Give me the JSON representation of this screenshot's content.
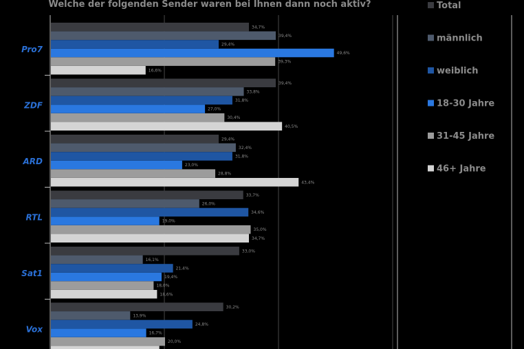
{
  "chart_data": {
    "type": "bar",
    "orientation": "horizontal",
    "title": "Welche der folgenden Sender waren bei Ihnen dann noch aktiv?",
    "categories": [
      "Pro7",
      "ZDF",
      "ARD",
      "RTL",
      "Sat1",
      "Vox"
    ],
    "series": [
      {
        "name": "Total",
        "color": "#3a3b40",
        "values": [
          34.7,
          39.4,
          29.4,
          33.7,
          33.0,
          30.2
        ],
        "labels": [
          "34,7%",
          "39,4%",
          "29,4%",
          "33,7%",
          "33,0%",
          "30,2%"
        ]
      },
      {
        "name": "männlich",
        "color": "#4e5a6c",
        "values": [
          39.4,
          33.8,
          32.4,
          26.0,
          16.1,
          13.9
        ],
        "labels": [
          "39,4%",
          "33,8%",
          "32,4%",
          "26,0%",
          "16,1%",
          "13,9%"
        ]
      },
      {
        "name": "weiblich",
        "color": "#1f56a3",
        "values": [
          29.4,
          31.8,
          31.8,
          34.6,
          21.4,
          24.8
        ],
        "labels": [
          "29,4%",
          "31,8%",
          "31,8%",
          "34,6%",
          "21,4%",
          "24,8%"
        ]
      },
      {
        "name": "18-30 Jahre",
        "color": "#2a78e0",
        "values": [
          49.6,
          27.0,
          23.0,
          19.0,
          19.4,
          16.7
        ],
        "labels": [
          "49,6%",
          "27,0%",
          "23,0%",
          "19,0%",
          "19,4%",
          "16,7%"
        ]
      },
      {
        "name": "31-45 Jahre",
        "color": "#9c9c9c",
        "values": [
          39.3,
          30.4,
          28.8,
          35.0,
          18.0,
          20.0
        ],
        "labels": [
          "39,3%",
          "30,4%",
          "28,8%",
          "35,0%",
          "18,0%",
          "20,0%"
        ]
      },
      {
        "name": "46+ Jahre",
        "color": "#d4d4d4",
        "values": [
          16.6,
          40.5,
          43.4,
          34.7,
          18.6,
          19.0
        ],
        "labels": [
          "16,6%",
          "40,5%",
          "43,4%",
          "34,7%",
          "18,6%",
          ""
        ]
      }
    ],
    "xlim": [
      0,
      60
    ],
    "grid": true,
    "legend_position": "right"
  }
}
